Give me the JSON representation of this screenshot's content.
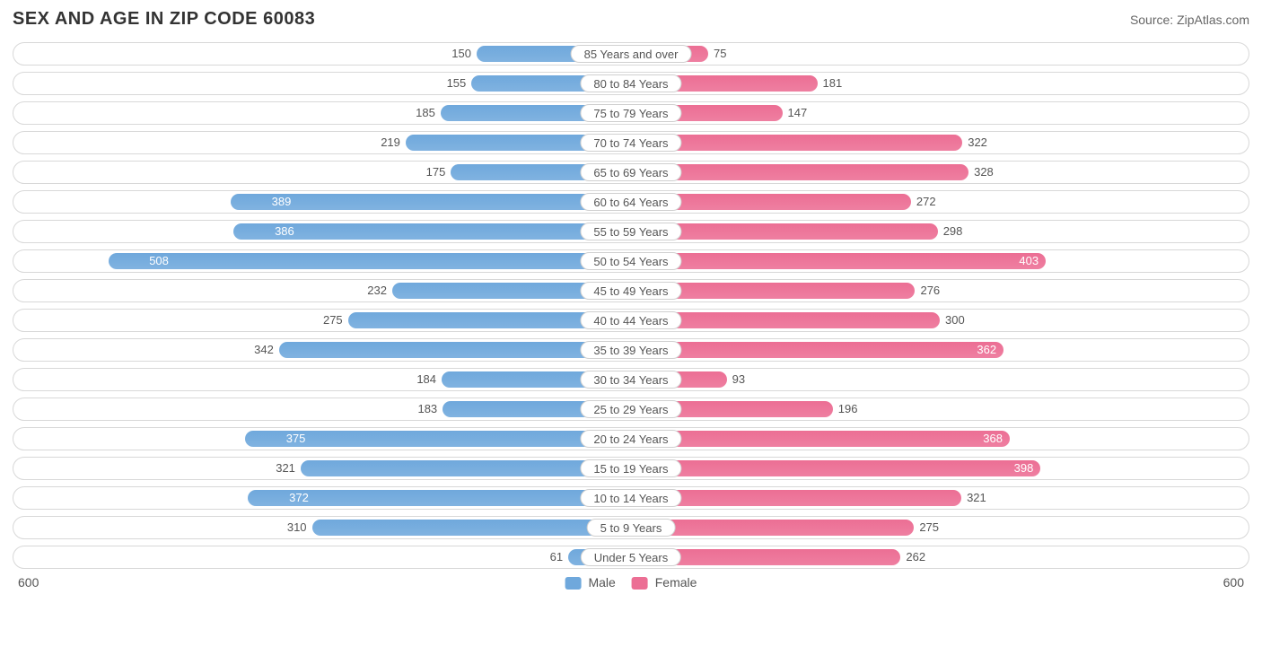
{
  "title": "SEX AND AGE IN ZIP CODE 60083",
  "source": "Source: ZipAtlas.com",
  "chart": {
    "type": "population-pyramid",
    "axis_max": 600,
    "axis_label_left": "600",
    "axis_label_right": "600",
    "male_color": "#6fa8dc",
    "female_color": "#ec6e94",
    "row_border_color": "#d8d8d8",
    "background_color": "#ffffff",
    "value_text_color": "#555555",
    "value_inside_color": "#ffffff",
    "value_fontsize": 13,
    "label_fontsize": 13,
    "title_fontsize": 20,
    "inside_label_threshold": 360,
    "legend": {
      "male": "Male",
      "female": "Female"
    },
    "rows": [
      {
        "label": "85 Years and over",
        "male": 150,
        "female": 75
      },
      {
        "label": "80 to 84 Years",
        "male": 155,
        "female": 181
      },
      {
        "label": "75 to 79 Years",
        "male": 185,
        "female": 147
      },
      {
        "label": "70 to 74 Years",
        "male": 219,
        "female": 322
      },
      {
        "label": "65 to 69 Years",
        "male": 175,
        "female": 328
      },
      {
        "label": "60 to 64 Years",
        "male": 389,
        "female": 272
      },
      {
        "label": "55 to 59 Years",
        "male": 386,
        "female": 298
      },
      {
        "label": "50 to 54 Years",
        "male": 508,
        "female": 403
      },
      {
        "label": "45 to 49 Years",
        "male": 232,
        "female": 276
      },
      {
        "label": "40 to 44 Years",
        "male": 275,
        "female": 300
      },
      {
        "label": "35 to 39 Years",
        "male": 342,
        "female": 362
      },
      {
        "label": "30 to 34 Years",
        "male": 184,
        "female": 93
      },
      {
        "label": "25 to 29 Years",
        "male": 183,
        "female": 196
      },
      {
        "label": "20 to 24 Years",
        "male": 375,
        "female": 368
      },
      {
        "label": "15 to 19 Years",
        "male": 321,
        "female": 398
      },
      {
        "label": "10 to 14 Years",
        "male": 372,
        "female": 321
      },
      {
        "label": "5 to 9 Years",
        "male": 310,
        "female": 275
      },
      {
        "label": "Under 5 Years",
        "male": 61,
        "female": 262
      }
    ]
  }
}
